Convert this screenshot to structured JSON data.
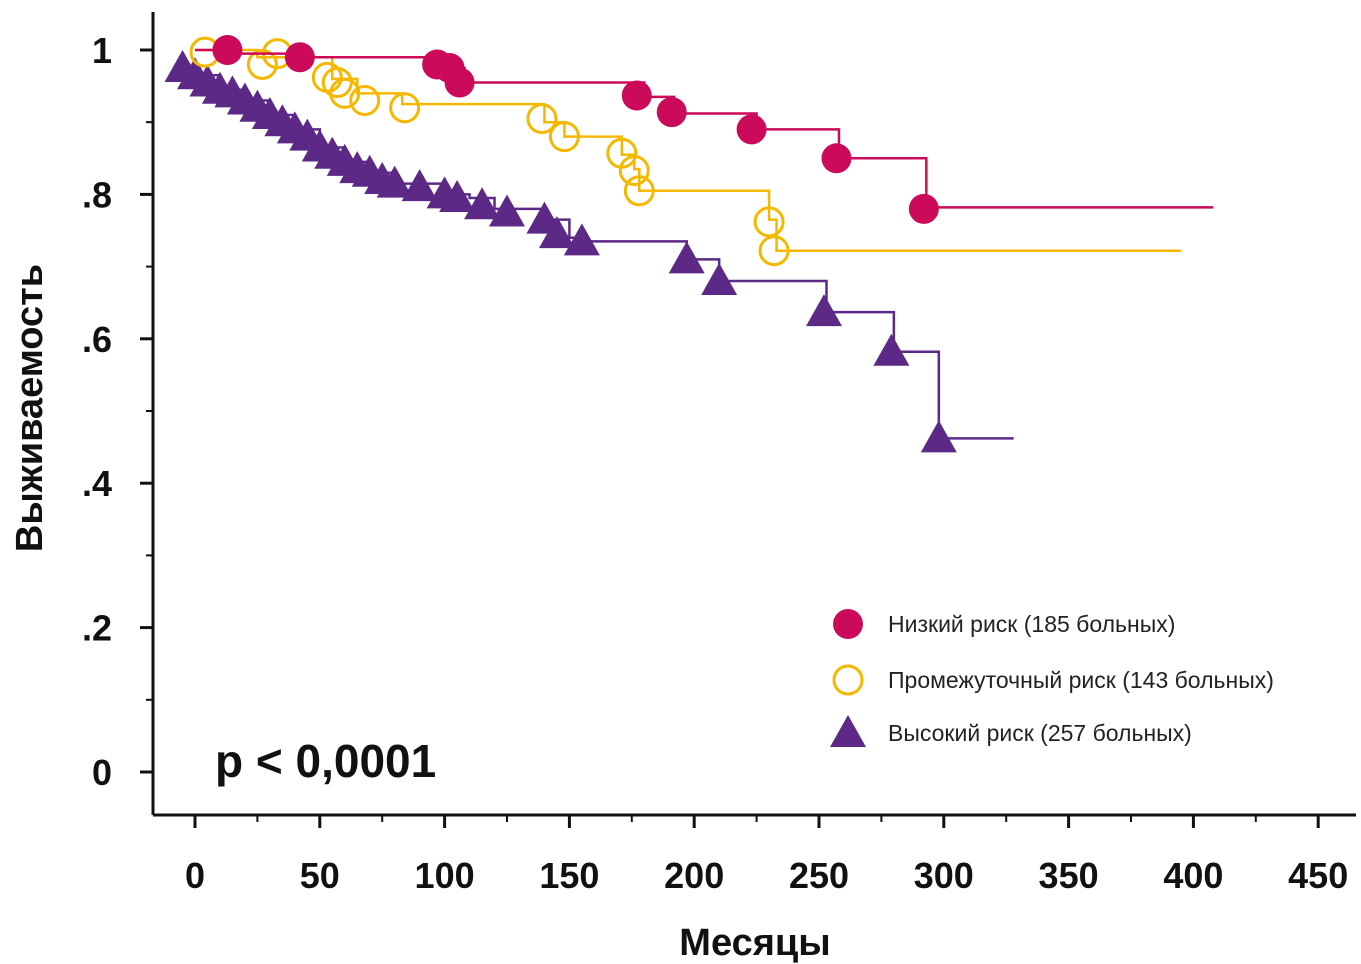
{
  "chart_data": {
    "type": "line",
    "title": "",
    "xlabel": "Месяцы",
    "ylabel": "Выживаемость",
    "xlim": [
      -10,
      450
    ],
    "ylim": [
      -0.05,
      1.05
    ],
    "x_ticks": [
      0,
      50,
      100,
      150,
      200,
      250,
      300,
      350,
      400,
      450
    ],
    "x_tick_labels": [
      "0",
      "50",
      "100",
      "150",
      "200",
      "250",
      "300",
      "350",
      "400",
      "450"
    ],
    "y_ticks": [
      0,
      0.2,
      0.4,
      0.6,
      0.8,
      1.0
    ],
    "y_tick_labels": [
      "0",
      ".2",
      ".4",
      ".6",
      ".8",
      "1"
    ],
    "grid": false,
    "legend_position": "bottom-right",
    "annotation": "p < 0,0001",
    "series": [
      {
        "name": "Низкий риск (185 больных)",
        "color": "#cc0a5a",
        "marker": "filled-circle",
        "steps": [
          [
            0,
            1.0
          ],
          [
            13,
            0.995
          ],
          [
            45,
            0.99
          ],
          [
            100,
            0.975
          ],
          [
            108,
            0.955
          ],
          [
            180,
            0.935
          ],
          [
            192,
            0.912
          ],
          [
            225,
            0.89
          ],
          [
            258,
            0.85
          ],
          [
            293,
            0.782
          ],
          [
            408,
            0.782
          ]
        ],
        "markers": [
          [
            13,
            1.0
          ],
          [
            42,
            0.99
          ],
          [
            97,
            0.98
          ],
          [
            102,
            0.975
          ],
          [
            106,
            0.955
          ],
          [
            177,
            0.937
          ],
          [
            191,
            0.914
          ],
          [
            223,
            0.89
          ],
          [
            257,
            0.85
          ],
          [
            292,
            0.78
          ]
        ]
      },
      {
        "name": "Промежуточный риск (143 больных)",
        "color": "#f5b800",
        "marker": "open-circle",
        "steps": [
          [
            0,
            1.0
          ],
          [
            25,
            0.99
          ],
          [
            55,
            0.96
          ],
          [
            65,
            0.94
          ],
          [
            83,
            0.925
          ],
          [
            140,
            0.9
          ],
          [
            148,
            0.88
          ],
          [
            171,
            0.855
          ],
          [
            176,
            0.835
          ],
          [
            178,
            0.805
          ],
          [
            230,
            0.765
          ],
          [
            233,
            0.722
          ],
          [
            395,
            0.722
          ]
        ],
        "markers": [
          [
            4,
            0.997
          ],
          [
            27,
            0.98
          ],
          [
            33,
            0.995
          ],
          [
            53,
            0.962
          ],
          [
            57,
            0.955
          ],
          [
            60,
            0.94
          ],
          [
            68,
            0.93
          ],
          [
            84,
            0.92
          ],
          [
            139,
            0.905
          ],
          [
            148,
            0.88
          ],
          [
            171,
            0.857
          ],
          [
            176,
            0.833
          ],
          [
            178,
            0.805
          ],
          [
            230,
            0.762
          ],
          [
            232,
            0.722
          ]
        ]
      },
      {
        "name": "Высокий риск (257 больных)",
        "color": "#5c2a86",
        "marker": "filled-triangle",
        "steps": [
          [
            -5,
            0.975
          ],
          [
            0,
            0.965
          ],
          [
            10,
            0.945
          ],
          [
            20,
            0.93
          ],
          [
            30,
            0.91
          ],
          [
            40,
            0.89
          ],
          [
            50,
            0.865
          ],
          [
            60,
            0.845
          ],
          [
            70,
            0.83
          ],
          [
            80,
            0.815
          ],
          [
            100,
            0.8
          ],
          [
            110,
            0.795
          ],
          [
            120,
            0.78
          ],
          [
            140,
            0.765
          ],
          [
            150,
            0.74
          ],
          [
            157,
            0.735
          ],
          [
            197,
            0.71
          ],
          [
            210,
            0.68
          ],
          [
            253,
            0.637
          ],
          [
            280,
            0.582
          ],
          [
            298,
            0.462
          ],
          [
            328,
            0.462
          ]
        ],
        "markers": [
          [
            -5,
            0.975
          ],
          [
            0,
            0.965
          ],
          [
            5,
            0.955
          ],
          [
            10,
            0.945
          ],
          [
            15,
            0.94
          ],
          [
            20,
            0.93
          ],
          [
            25,
            0.92
          ],
          [
            30,
            0.91
          ],
          [
            35,
            0.9
          ],
          [
            40,
            0.89
          ],
          [
            45,
            0.88
          ],
          [
            50,
            0.865
          ],
          [
            55,
            0.855
          ],
          [
            60,
            0.845
          ],
          [
            65,
            0.835
          ],
          [
            70,
            0.83
          ],
          [
            75,
            0.82
          ],
          [
            80,
            0.815
          ],
          [
            90,
            0.81
          ],
          [
            100,
            0.8
          ],
          [
            105,
            0.795
          ],
          [
            115,
            0.785
          ],
          [
            125,
            0.775
          ],
          [
            140,
            0.765
          ],
          [
            145,
            0.745
          ],
          [
            155,
            0.735
          ],
          [
            197,
            0.71
          ],
          [
            210,
            0.68
          ],
          [
            252,
            0.637
          ],
          [
            279,
            0.582
          ],
          [
            298,
            0.462
          ]
        ]
      }
    ]
  }
}
